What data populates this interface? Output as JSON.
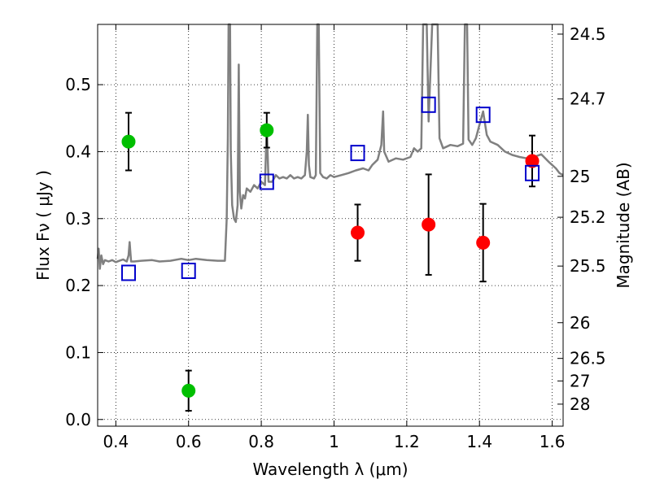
{
  "chart_data": {
    "type": "scatter",
    "xlabel": "Wavelength  λ (μm)",
    "ylabel": "Flux  Fν  ( μJy )",
    "y2label": "Magnitude (AB)",
    "xlim": [
      0.35,
      1.63
    ],
    "ylim": [
      -0.01,
      0.59
    ],
    "grid": true,
    "x_ticks": [
      {
        "value": 0.4,
        "label": "0.4"
      },
      {
        "value": 0.6,
        "label": "0.6"
      },
      {
        "value": 0.8,
        "label": "0.8"
      },
      {
        "value": 1.0,
        "label": "1"
      },
      {
        "value": 1.2,
        "label": "1.2"
      },
      {
        "value": 1.4,
        "label": "1.4"
      },
      {
        "value": 1.6,
        "label": "1.6"
      }
    ],
    "y_ticks": [
      {
        "value": 0.0,
        "label": "0.0"
      },
      {
        "value": 0.1,
        "label": "0.1"
      },
      {
        "value": 0.2,
        "label": "0.2"
      },
      {
        "value": 0.3,
        "label": "0.3"
      },
      {
        "value": 0.4,
        "label": "0.4"
      },
      {
        "value": 0.5,
        "label": "0.5"
      }
    ],
    "y2_ticks": [
      {
        "value": 24.5,
        "label": "24.5"
      },
      {
        "value": 24.7,
        "label": "24.7"
      },
      {
        "value": 25.0,
        "label": "25"
      },
      {
        "value": 25.2,
        "label": "25.2"
      },
      {
        "value": 25.5,
        "label": "25.5"
      },
      {
        "value": 26.0,
        "label": "26"
      },
      {
        "value": 26.5,
        "label": "26.5"
      },
      {
        "value": 27.0,
        "label": "27"
      },
      {
        "value": 28.0,
        "label": "28"
      }
    ],
    "colors": {
      "spectrum": "#808080",
      "green_points": "#00bf00",
      "red_points": "#ff0000",
      "model_squares": "#0000cc",
      "error_bars": "#000000"
    },
    "series": [
      {
        "role": "model-spectrum",
        "style": "line",
        "points": [
          [
            0.35,
            0.24
          ],
          [
            0.353,
            0.255
          ],
          [
            0.356,
            0.225
          ],
          [
            0.36,
            0.245
          ],
          [
            0.365,
            0.232
          ],
          [
            0.37,
            0.238
          ],
          [
            0.38,
            0.236
          ],
          [
            0.39,
            0.238
          ],
          [
            0.4,
            0.235
          ],
          [
            0.41,
            0.237
          ],
          [
            0.42,
            0.239
          ],
          [
            0.43,
            0.236
          ],
          [
            0.435,
            0.245
          ],
          [
            0.438,
            0.265
          ],
          [
            0.44,
            0.25
          ],
          [
            0.442,
            0.236
          ],
          [
            0.45,
            0.236
          ],
          [
            0.47,
            0.237
          ],
          [
            0.5,
            0.238
          ],
          [
            0.52,
            0.236
          ],
          [
            0.55,
            0.237
          ],
          [
            0.58,
            0.24
          ],
          [
            0.6,
            0.238
          ],
          [
            0.62,
            0.24
          ],
          [
            0.65,
            0.238
          ],
          [
            0.68,
            0.237
          ],
          [
            0.7,
            0.237
          ],
          [
            0.705,
            0.3
          ],
          [
            0.708,
            0.42
          ],
          [
            0.71,
            0.6
          ],
          [
            0.714,
            0.6
          ],
          [
            0.716,
            0.4
          ],
          [
            0.72,
            0.32
          ],
          [
            0.725,
            0.3
          ],
          [
            0.73,
            0.295
          ],
          [
            0.735,
            0.32
          ],
          [
            0.738,
            0.53
          ],
          [
            0.741,
            0.34
          ],
          [
            0.745,
            0.315
          ],
          [
            0.75,
            0.335
          ],
          [
            0.755,
            0.33
          ],
          [
            0.76,
            0.345
          ],
          [
            0.77,
            0.34
          ],
          [
            0.78,
            0.35
          ],
          [
            0.79,
            0.345
          ],
          [
            0.8,
            0.355
          ],
          [
            0.81,
            0.35
          ],
          [
            0.815,
            0.44
          ],
          [
            0.82,
            0.355
          ],
          [
            0.83,
            0.355
          ],
          [
            0.84,
            0.365
          ],
          [
            0.85,
            0.36
          ],
          [
            0.86,
            0.362
          ],
          [
            0.87,
            0.36
          ],
          [
            0.88,
            0.365
          ],
          [
            0.89,
            0.36
          ],
          [
            0.9,
            0.362
          ],
          [
            0.91,
            0.36
          ],
          [
            0.92,
            0.365
          ],
          [
            0.925,
            0.4
          ],
          [
            0.928,
            0.455
          ],
          [
            0.931,
            0.38
          ],
          [
            0.935,
            0.362
          ],
          [
            0.945,
            0.36
          ],
          [
            0.95,
            0.365
          ],
          [
            0.954,
            0.6
          ],
          [
            0.958,
            0.6
          ],
          [
            0.962,
            0.368
          ],
          [
            0.97,
            0.362
          ],
          [
            0.98,
            0.36
          ],
          [
            0.99,
            0.365
          ],
          [
            1.0,
            0.362
          ],
          [
            1.02,
            0.365
          ],
          [
            1.04,
            0.368
          ],
          [
            1.06,
            0.372
          ],
          [
            1.08,
            0.375
          ],
          [
            1.095,
            0.372
          ],
          [
            1.105,
            0.38
          ],
          [
            1.12,
            0.388
          ],
          [
            1.13,
            0.41
          ],
          [
            1.135,
            0.46
          ],
          [
            1.138,
            0.4
          ],
          [
            1.15,
            0.385
          ],
          [
            1.17,
            0.39
          ],
          [
            1.19,
            0.388
          ],
          [
            1.21,
            0.392
          ],
          [
            1.22,
            0.405
          ],
          [
            1.23,
            0.4
          ],
          [
            1.24,
            0.405
          ],
          [
            1.245,
            0.6
          ],
          [
            1.255,
            0.6
          ],
          [
            1.26,
            0.445
          ],
          [
            1.27,
            0.6
          ],
          [
            1.285,
            0.6
          ],
          [
            1.29,
            0.42
          ],
          [
            1.3,
            0.405
          ],
          [
            1.32,
            0.41
          ],
          [
            1.34,
            0.408
          ],
          [
            1.355,
            0.412
          ],
          [
            1.36,
            0.6
          ],
          [
            1.366,
            0.6
          ],
          [
            1.37,
            0.418
          ],
          [
            1.38,
            0.41
          ],
          [
            1.39,
            0.42
          ],
          [
            1.4,
            0.44
          ],
          [
            1.41,
            0.46
          ],
          [
            1.42,
            0.425
          ],
          [
            1.43,
            0.415
          ],
          [
            1.45,
            0.41
          ],
          [
            1.47,
            0.4
          ],
          [
            1.49,
            0.395
          ],
          [
            1.51,
            0.392
          ],
          [
            1.53,
            0.39
          ],
          [
            1.55,
            0.392
          ],
          [
            1.57,
            0.396
          ],
          [
            1.59,
            0.385
          ],
          [
            1.61,
            0.375
          ],
          [
            1.62,
            0.368
          ],
          [
            1.63,
            0.365
          ]
        ]
      },
      {
        "role": "green-points",
        "style": "marker-circle",
        "x": [
          0.435,
          0.6,
          0.815
        ],
        "y": [
          0.415,
          0.043,
          0.432
        ],
        "yerr": [
          0.043,
          0.03,
          0.026
        ]
      },
      {
        "role": "red-points",
        "style": "marker-circle",
        "x": [
          1.065,
          1.26,
          1.41,
          1.545
        ],
        "y": [
          0.279,
          0.291,
          0.264,
          0.386
        ],
        "yerr": [
          0.042,
          0.075,
          0.058,
          0.038
        ]
      },
      {
        "role": "model-squares",
        "style": "marker-square-open",
        "x": [
          0.435,
          0.6,
          0.815,
          1.065,
          1.26,
          1.41,
          1.545
        ],
        "y": [
          0.219,
          0.222,
          0.355,
          0.398,
          0.47,
          0.455,
          0.368
        ]
      }
    ]
  }
}
